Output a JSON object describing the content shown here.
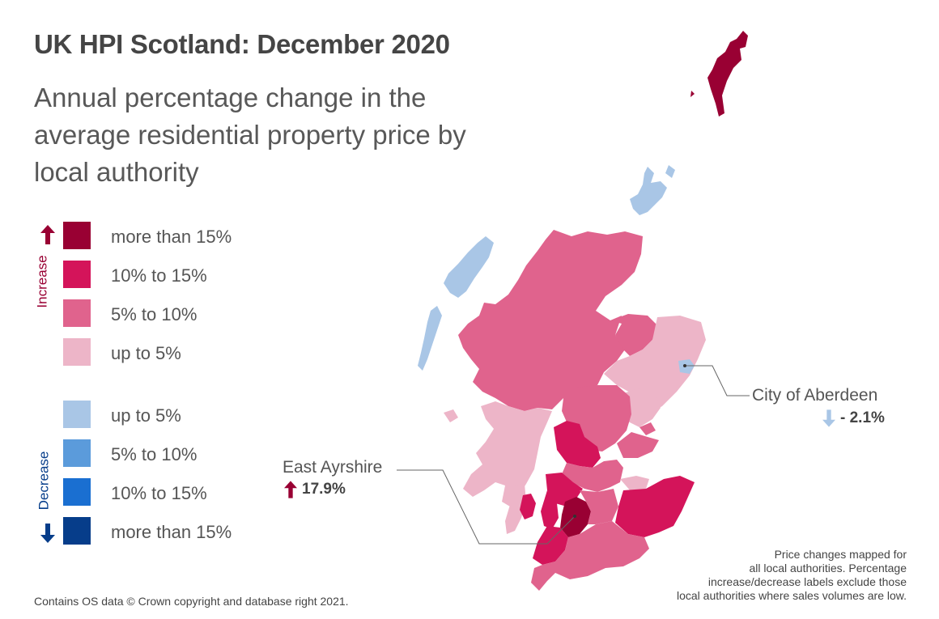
{
  "title": "UK HPI Scotland: December 2020",
  "subtitle": "Annual percentage change in the average residential property price by local authority",
  "legend": {
    "increase_label": "Increase",
    "decrease_label": "Decrease",
    "items": [
      {
        "label": "more than 15%",
        "color": "#990033"
      },
      {
        "label": "10% to 15%",
        "color": "#D4145A"
      },
      {
        "label": "5% to 10%",
        "color": "#E0638D"
      },
      {
        "label": "up to 5%",
        "color": "#EDB5C8"
      },
      {
        "label": "up to 5%",
        "color": "#A9C6E6"
      },
      {
        "label": "5% to 10%",
        "color": "#5B9BDB"
      },
      {
        "label": "10% to 15%",
        "color": "#1A6FD1"
      },
      {
        "label": "more than 15%",
        "color": "#063D8A"
      }
    ]
  },
  "callouts": [
    {
      "name": "East Ayrshire",
      "value": "17.9%",
      "direction": "increase",
      "arrow_color": "#990033"
    },
    {
      "name": "City of Aberdeen",
      "value": "- 2.1%",
      "direction": "decrease",
      "arrow_color": "#A9C6E6"
    }
  ],
  "note": {
    "lines": [
      "Price changes mapped for",
      "all local authorities. Percentage",
      "increase/decrease labels exclude those",
      "local authorities where sales volumes are low."
    ]
  },
  "source": "Contains OS data © Crown copyright and database right 2021."
}
